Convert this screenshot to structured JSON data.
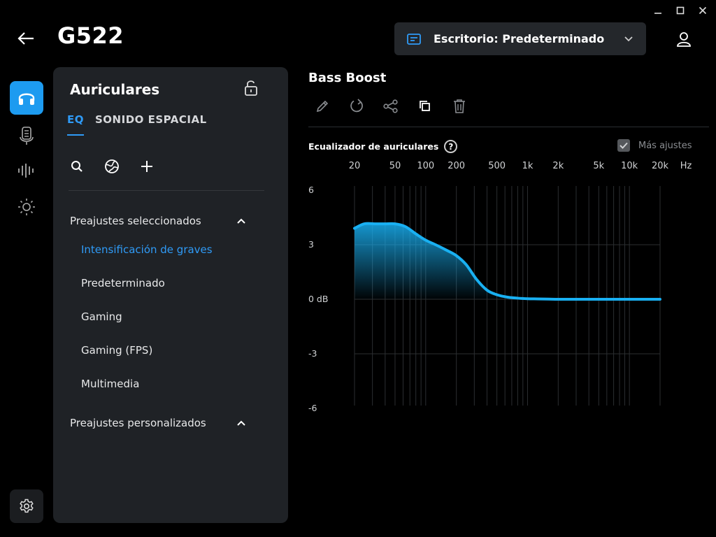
{
  "window": {
    "controls": [
      "minimize-icon",
      "maximize-icon",
      "close-icon"
    ]
  },
  "header": {
    "device": "G522",
    "profile": "Escritorio: Predeterminado"
  },
  "rail": {
    "items": [
      "headphones-icon",
      "microphone-icon",
      "waveform-icon",
      "brightness-icon"
    ],
    "active": 0,
    "accent": "#1d9bf0"
  },
  "panel": {
    "title": "Auriculares",
    "tabs": [
      {
        "label": "EQ",
        "active": true
      },
      {
        "label": "SONIDO ESPACIAL",
        "active": false
      }
    ],
    "sections": [
      {
        "label": "Preajustes seleccionados",
        "expanded": true,
        "items": [
          "Intensificación de graves",
          "Predeterminado",
          "Gaming",
          "Gaming (FPS)",
          "Multimedia"
        ],
        "selected": 0
      },
      {
        "label": "Preajustes personalizados",
        "expanded": true,
        "items": []
      }
    ]
  },
  "eq": {
    "name": "Bass Boost",
    "chart_label": "Ecualizador de auriculares",
    "more_settings": "Más ajustes",
    "more_checked": true
  },
  "chart_data": {
    "type": "area",
    "x_scale": "log",
    "x_tick_labels": [
      "20",
      "50",
      "100",
      "200",
      "500",
      "1k",
      "2k",
      "5k",
      "10k",
      "20k",
      "Hz"
    ],
    "x_tick_values": [
      20,
      50,
      100,
      200,
      500,
      1000,
      2000,
      5000,
      10000,
      20000
    ],
    "y_tick_labels": [
      "6",
      "3",
      "0 dB",
      "-3",
      "-6"
    ],
    "y_tick_values": [
      6,
      3,
      0,
      -3,
      -6
    ],
    "ylim": [
      -6,
      6
    ],
    "xlim": [
      20,
      20000
    ],
    "color": "#19b0f2",
    "series": [
      {
        "x": [
          20,
          25,
          32,
          40,
          50,
          63,
          80,
          100,
          125,
          160,
          200,
          250,
          315,
          400,
          500,
          630,
          800,
          1000,
          1250,
          1600,
          2000,
          3000,
          5000,
          10000,
          20000
        ],
        "y": [
          3.9,
          4.15,
          4.15,
          4.15,
          4.15,
          4.0,
          3.6,
          3.25,
          3.0,
          2.7,
          2.4,
          1.9,
          1.1,
          0.5,
          0.25,
          0.12,
          0.06,
          0.03,
          0.02,
          0.01,
          0.0,
          0.0,
          0.0,
          0.0,
          0.0
        ]
      }
    ]
  }
}
